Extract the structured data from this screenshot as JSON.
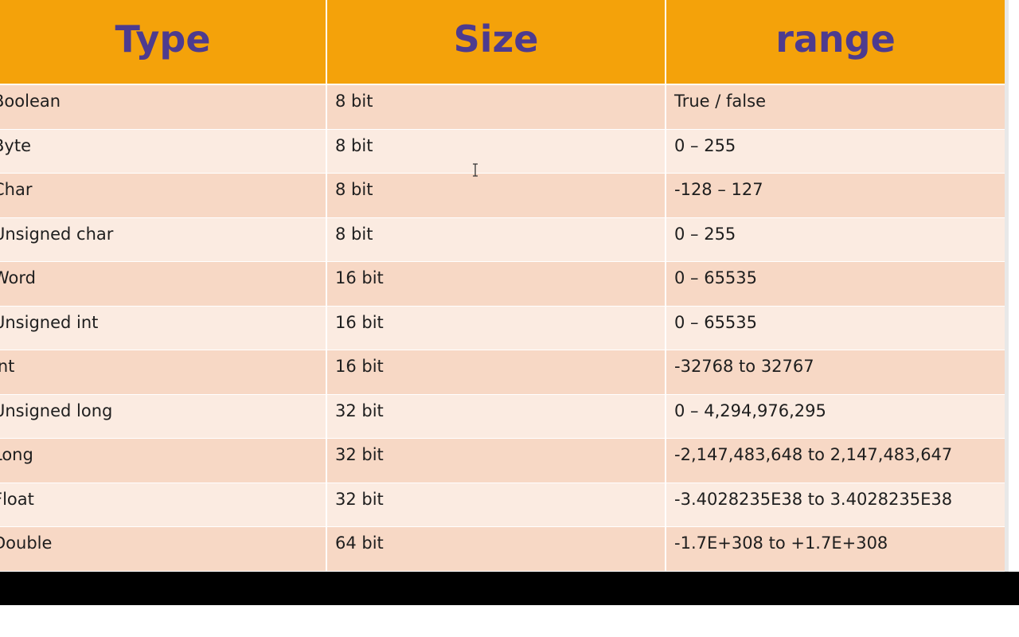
{
  "table": {
    "header": [
      "Type",
      "Size",
      "range"
    ],
    "rows": [
      [
        "Boolean",
        "8 bit",
        "True / false"
      ],
      [
        "Byte",
        "8 bit",
        "0 – 255"
      ],
      [
        "Char",
        "8 bit",
        "-128 – 127"
      ],
      [
        "Unsigned char",
        "8 bit",
        "0 – 255"
      ],
      [
        "Word",
        "16 bit",
        "0 – 65535"
      ],
      [
        "Unsigned int",
        "16 bit",
        "0 – 65535"
      ],
      [
        "int",
        "16 bit",
        "-32768 to 32767"
      ],
      [
        "Unsigned long",
        "32 bit",
        "0 – 4,294,976,295"
      ],
      [
        "Long",
        "32 bit",
        "-2,147,483,648 to 2,147,483,647"
      ],
      [
        "Float",
        "32 bit",
        "-3.4028235E38 to 3.4028235E38"
      ],
      [
        "Double",
        "64 bit",
        "-1.7E+308 to +1.7E+308"
      ]
    ]
  }
}
